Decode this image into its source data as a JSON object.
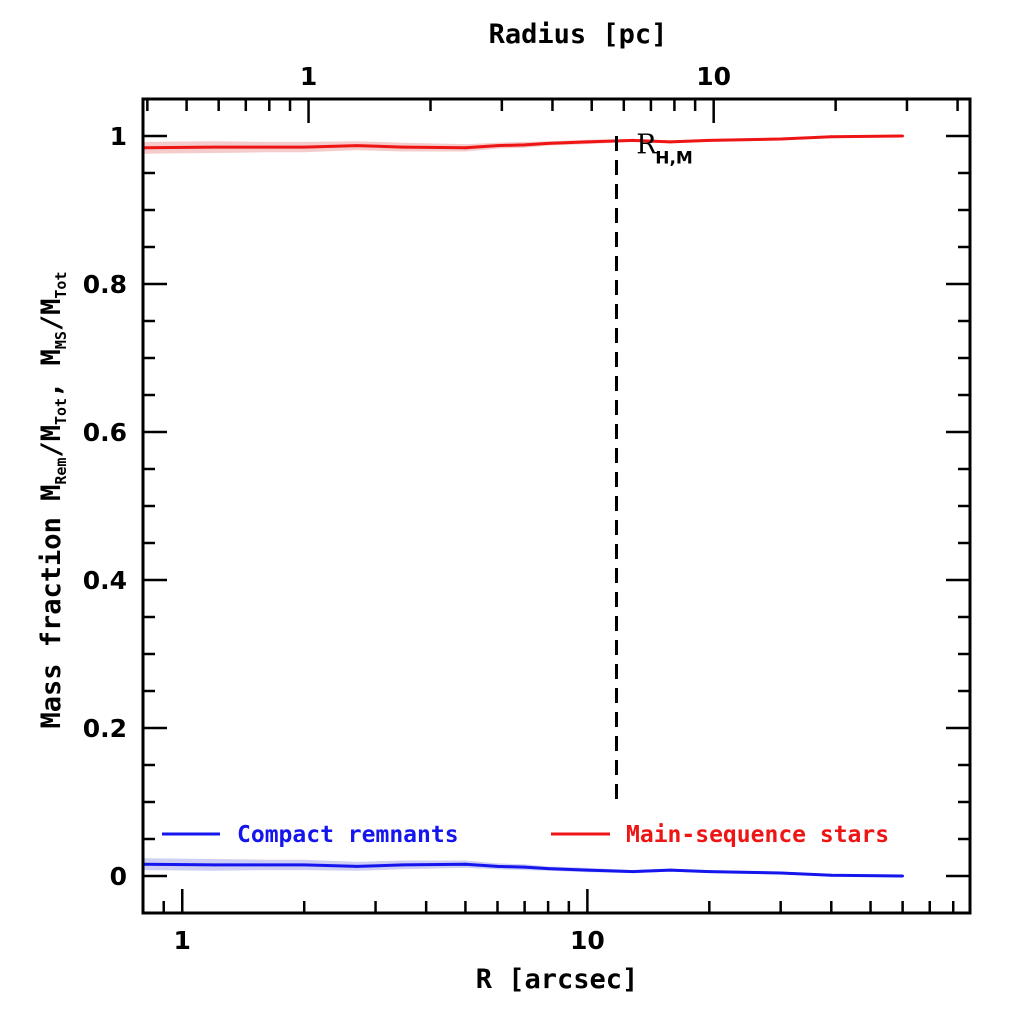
{
  "chart_data": {
    "type": "line",
    "xlabel": "R [arcsec]",
    "ylabel": {
      "prefix": "Mass fraction  ",
      "m1": "M",
      "s1": "Rem",
      "slash1": "/M",
      "s2": "Tot",
      "comma": ",  ",
      "m2": "M",
      "s3": "MS",
      "slash2": "/M",
      "s4": "Tot"
    },
    "top_xlabel": "Radius [pc]",
    "x_scale": "log",
    "xlim_arcsec": [
      0.8,
      88
    ],
    "ylim": [
      -0.05,
      1.05
    ],
    "x_ticks": [
      {
        "value": 1,
        "label": "1"
      },
      {
        "value": 10,
        "label": "10"
      }
    ],
    "top_ticks": [
      {
        "value_arcsec": 2.05,
        "label": "1"
      },
      {
        "value_arcsec": 20.5,
        "label": "10"
      }
    ],
    "y_ticks": [
      {
        "value": 0,
        "label": "0"
      },
      {
        "value": 0.2,
        "label": "0.2"
      },
      {
        "value": 0.4,
        "label": "0.4"
      },
      {
        "value": 0.6,
        "label": "0.6"
      },
      {
        "value": 0.8,
        "label": "0.8"
      },
      {
        "value": 1,
        "label": "1"
      }
    ],
    "series": [
      {
        "name": "Compact remnants",
        "color": "#1515ee",
        "band_color": "#cfcff4",
        "x": [
          0.8,
          1.2,
          1.6,
          2.0,
          2.7,
          3.5,
          5.0,
          6.0,
          7.0,
          8.0,
          10,
          13,
          16,
          20,
          30,
          40,
          60
        ],
        "y": [
          0.016,
          0.015,
          0.015,
          0.015,
          0.013,
          0.015,
          0.016,
          0.013,
          0.012,
          0.01,
          0.008,
          0.006,
          0.008,
          0.006,
          0.004,
          0.001,
          0.0
        ],
        "band": [
          0.008,
          0.008,
          0.007,
          0.007,
          0.006,
          0.006,
          0.005,
          0.004,
          0.004,
          0.003,
          0.003,
          0.002,
          0.002,
          0.002,
          0.002,
          0.001,
          0.001
        ]
      },
      {
        "name": "Main-sequence stars",
        "color": "#ee1515",
        "band_color": "#f4cccc",
        "x": [
          0.8,
          1.2,
          1.6,
          2.0,
          2.7,
          3.5,
          5.0,
          6.0,
          7.0,
          8.0,
          10,
          13,
          16,
          20,
          30,
          40,
          60
        ],
        "y": [
          0.984,
          0.985,
          0.985,
          0.985,
          0.987,
          0.985,
          0.984,
          0.987,
          0.988,
          0.99,
          0.992,
          0.994,
          0.992,
          0.994,
          0.996,
          0.999,
          1.0
        ],
        "band": [
          0.008,
          0.008,
          0.007,
          0.007,
          0.006,
          0.006,
          0.005,
          0.004,
          0.004,
          0.003,
          0.003,
          0.002,
          0.002,
          0.002,
          0.002,
          0.001,
          0.001
        ]
      }
    ],
    "vline": {
      "x": 11.8,
      "y_top": 1.0,
      "y_bottom": 0.1,
      "style": "dashed"
    },
    "annotation": {
      "text": "R",
      "sub": "H,M",
      "x": 13.2,
      "y": 0.99
    },
    "legend": {
      "placement": "bottom",
      "y": 0.057
    }
  }
}
